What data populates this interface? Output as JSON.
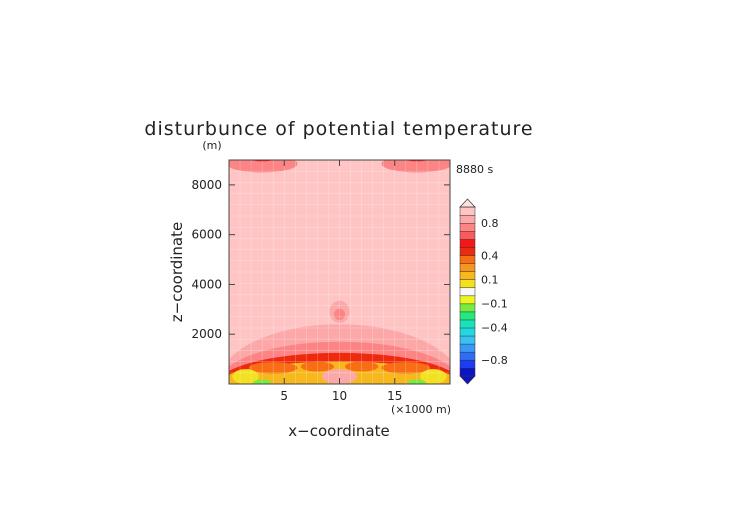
{
  "chart_data": {
    "type": "heatmap",
    "title": "disturbunce of potential temperature",
    "ylabel": "z−coordinate",
    "xlabel": "x−coordinate",
    "y_unit": "(m)",
    "x_unit": "(×1000 m)",
    "time_label": "8880 s",
    "xlim": [
      0,
      20
    ],
    "ylim": [
      0,
      9000
    ],
    "x_ticks": [
      5,
      10,
      15
    ],
    "y_ticks": [
      2000,
      4000,
      6000,
      8000
    ],
    "x_tick_labels": [
      "5",
      "10",
      "15"
    ],
    "y_tick_labels": [
      "2000",
      "4000",
      "6000",
      "8000"
    ],
    "colorbar": {
      "levels": [
        -1.0,
        -0.9,
        -0.8,
        -0.7,
        -0.6,
        -0.5,
        -0.4,
        -0.3,
        -0.2,
        -0.1,
        -0.05,
        0.05,
        0.1,
        0.2,
        0.3,
        0.4,
        0.5,
        0.6,
        0.7,
        0.8,
        0.9,
        1.0
      ],
      "colors": [
        "#0a14c8",
        "#1e3cf0",
        "#2a6ef6",
        "#3a98f8",
        "#37c2f4",
        "#22d6e2",
        "#18e2b8",
        "#22e87e",
        "#78ec3e",
        "#ecf51e",
        "#f8f8f8",
        "#f3e020",
        "#f6b81c",
        "#f6961c",
        "#f86e14",
        "#ee2a0e",
        "#f21818",
        "#fb5a5a",
        "#fc8484",
        "#fda8a8",
        "#ffc4c4"
      ],
      "under_color": "#0a14c8",
      "over_color": "#ffe0e0",
      "tick_values": [
        0.8,
        0.4,
        0.1,
        -0.1,
        -0.4,
        -0.8
      ],
      "tick_labels": [
        "0.8",
        "0.4",
        "0.1",
        "−0.1",
        "−0.4",
        "−0.8"
      ]
    },
    "background_value": 0.95,
    "features": [
      {
        "cx": 3.0,
        "cz": 8850,
        "rx": 3.2,
        "rz": 350,
        "value": 0.75
      },
      {
        "cx": 3.0,
        "cz": 9100,
        "rx": 1.4,
        "rz": 150,
        "value": 0.55
      },
      {
        "cx": 17.0,
        "cz": 8850,
        "rx": 3.2,
        "rz": 350,
        "value": 0.75
      },
      {
        "cx": 17.0,
        "cz": 9100,
        "rx": 1.4,
        "rz": 150,
        "value": 0.55
      },
      {
        "cx": 10.0,
        "cz": 2900,
        "rx": 0.9,
        "rz": 450,
        "value": 0.85
      },
      {
        "cx": 10.0,
        "cz": 2800,
        "rx": 0.5,
        "rz": 230,
        "value": 0.75
      },
      {
        "cx": 10.0,
        "cz": 0,
        "rx": 11.0,
        "rz": 2400,
        "value": 0.85
      },
      {
        "cx": 10.0,
        "cz": 0,
        "rx": 11.0,
        "rz": 1700,
        "value": 0.75
      },
      {
        "cx": 10.0,
        "cz": 0,
        "rx": 11.0,
        "rz": 1250,
        "value": 0.45
      },
      {
        "cx": 10.0,
        "cz": 0,
        "rx": 11.0,
        "rz": 900,
        "value": 0.15
      },
      {
        "cx": 4.0,
        "cz": 650,
        "rx": 2.2,
        "rz": 230,
        "value": 0.35
      },
      {
        "cx": 16.0,
        "cz": 650,
        "rx": 2.2,
        "rz": 230,
        "value": 0.35
      },
      {
        "cx": 8.0,
        "cz": 700,
        "rx": 1.5,
        "rz": 200,
        "value": 0.35
      },
      {
        "cx": 12.0,
        "cz": 700,
        "rx": 1.5,
        "rz": 200,
        "value": 0.35
      },
      {
        "cx": 1.5,
        "cz": 300,
        "rx": 1.2,
        "rz": 300,
        "value": 0.05
      },
      {
        "cx": 18.5,
        "cz": 300,
        "rx": 1.2,
        "rz": 300,
        "value": 0.05
      },
      {
        "cx": 10.0,
        "cz": 300,
        "rx": 1.6,
        "rz": 300,
        "value": 0.85
      },
      {
        "cx": 3.0,
        "cz": 60,
        "rx": 0.8,
        "rz": 120,
        "value": -0.15
      },
      {
        "cx": 17.0,
        "cz": 60,
        "rx": 0.8,
        "rz": 120,
        "value": -0.15
      }
    ]
  }
}
